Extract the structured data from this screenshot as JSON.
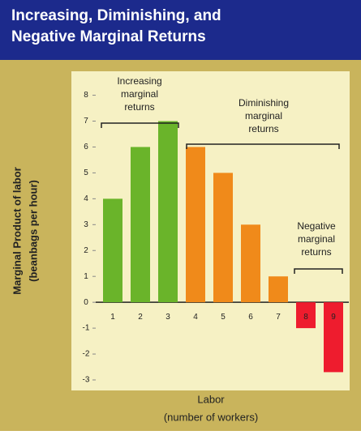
{
  "chart_data": {
    "type": "bar",
    "title": [
      "Increasing, Diminishing, and",
      "Negative Marginal Returns"
    ],
    "y_label": [
      "Marginal Product of labor",
      "(beanbags per hour)"
    ],
    "x_label": [
      "Labor",
      "(number of workers)"
    ],
    "categories": [
      "1",
      "2",
      "3",
      "4",
      "5",
      "6",
      "7",
      "8",
      "9"
    ],
    "values": [
      4,
      6,
      7,
      6,
      5,
      3,
      1,
      -1,
      -2.7
    ],
    "colors": [
      "#6ab42a",
      "#6ab42a",
      "#6ab42a",
      "#f08a1a",
      "#f08a1a",
      "#f08a1a",
      "#f08a1a",
      "#ee1c2e",
      "#ee1c2e"
    ],
    "ylim": [
      -3,
      8.8
    ],
    "yticks": [
      8,
      7,
      6,
      5,
      4,
      3,
      2,
      1,
      0,
      -1,
      -2,
      -3
    ],
    "annotations": [
      [
        "Increasing",
        "marginal",
        "returns"
      ],
      [
        "Diminishing",
        "marginal",
        "returns"
      ],
      [
        "Negative",
        "marginal",
        "returns"
      ]
    ]
  }
}
